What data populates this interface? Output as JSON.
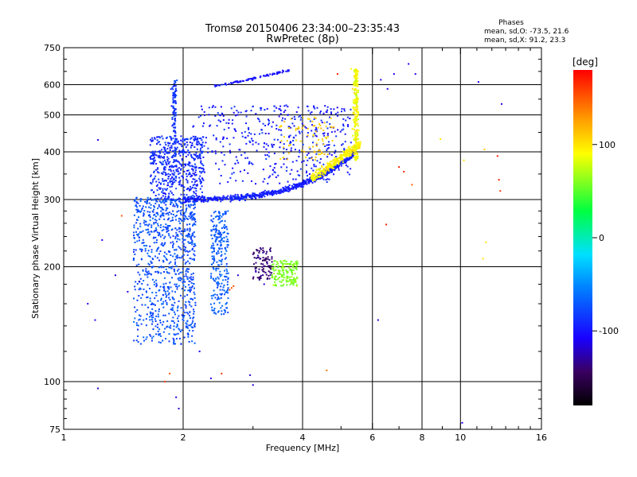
{
  "chart_data": {
    "type": "scatter",
    "title": "Tromsø 20150406 23:34:00–23:35:43",
    "subtitle": "RwPretec (8p)",
    "xlabel": "Frequency [MHz]",
    "ylabel": "Stationary phase Virtual Height [km]",
    "x_scale": "log",
    "y_scale": "log",
    "xlim": [
      1,
      16
    ],
    "ylim": [
      75,
      750
    ],
    "x_ticks": [
      1,
      2,
      4,
      6,
      8,
      10,
      16
    ],
    "x_tick_labels": [
      "1",
      "2",
      "4",
      "6",
      "8",
      "10",
      "16"
    ],
    "y_ticks": [
      75,
      100,
      200,
      300,
      400,
      500,
      600,
      750
    ],
    "y_tick_labels": [
      "75",
      "100",
      "200",
      "300",
      "400",
      "500",
      "600",
      "750"
    ],
    "grid": true,
    "phases_box": {
      "title": "Phases",
      "line_o": "mean, sd,O: -73.5, 21.6",
      "line_x": "mean, sd,X:  91.2, 23.3"
    },
    "colorbar": {
      "label": "[deg]",
      "range": [
        -180,
        180
      ],
      "ticks": [
        -100,
        0,
        100
      ],
      "tick_labels": [
        "-100",
        "0",
        "100"
      ],
      "colormap": "rainbow (black-purple-blue-cyan-green-yellow-red)"
    },
    "series": [
      {
        "values": [
          [
            1.22,
            96,
            -120
          ],
          [
            1.25,
            235,
            -110
          ],
          [
            1.22,
            430,
            -115
          ],
          [
            1.35,
            190,
            -120
          ],
          [
            1.4,
            272,
            150
          ],
          [
            1.15,
            160,
            -110
          ],
          [
            1.2,
            145,
            -105
          ],
          [
            1.45,
            172,
            -110
          ],
          [
            1.55,
            183,
            -120
          ],
          [
            1.8,
            100,
            160
          ],
          [
            1.85,
            105,
            150
          ],
          [
            1.92,
            91,
            -110
          ],
          [
            1.95,
            85,
            -115
          ],
          [
            2.35,
            102,
            -110
          ],
          [
            2.5,
            105,
            160
          ],
          [
            2.2,
            120,
            -110
          ],
          [
            2.65,
            176,
            150
          ],
          [
            2.68,
            178,
            155
          ],
          [
            2.62,
            174,
            150
          ],
          [
            2.75,
            190,
            -120
          ],
          [
            2.95,
            104,
            -120
          ],
          [
            3.0,
            98,
            -115
          ],
          [
            3.05,
            194,
            -120
          ],
          [
            3.2,
            180,
            -115
          ],
          [
            4.6,
            107,
            140
          ],
          [
            6.2,
            145,
            -120
          ],
          [
            6.5,
            258,
            170
          ],
          [
            7.2,
            355,
            170
          ],
          [
            7.55,
            328,
            150
          ],
          [
            7.0,
            365,
            170
          ],
          [
            6.8,
            640,
            -110
          ],
          [
            7.4,
            680,
            -110
          ],
          [
            7.7,
            640,
            -110
          ],
          [
            8.9,
            432,
            100
          ],
          [
            10.2,
            380,
            100
          ],
          [
            11.5,
            406,
            110
          ],
          [
            11.4,
            210,
            100
          ],
          [
            11.6,
            232,
            100
          ],
          [
            12.6,
            316,
            160
          ],
          [
            12.5,
            338,
            170
          ],
          [
            12.4,
            390,
            170
          ],
          [
            12.7,
            534,
            -110
          ],
          [
            11.1,
            610,
            -110
          ],
          [
            6.3,
            618,
            -110
          ],
          [
            6.55,
            585,
            -110
          ],
          [
            5.3,
            660,
            90
          ],
          [
            4.9,
            640,
            170
          ],
          [
            10.1,
            78,
            -110
          ]
        ]
      }
    ]
  }
}
